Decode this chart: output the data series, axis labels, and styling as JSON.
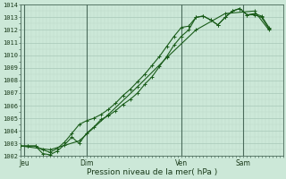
{
  "xlabel": "Pression niveau de la mer( hPa )",
  "ylim": [
    1002,
    1014
  ],
  "xlim": [
    0,
    36
  ],
  "bg_color": "#cce8d8",
  "grid_color_major": "#a8c8b8",
  "grid_color_minor": "#bcd8c8",
  "line_color": "#1a5c1a",
  "day_labels": [
    "Jeu",
    "Dim",
    "Ven",
    "Sam"
  ],
  "day_positions": [
    0.5,
    9,
    22,
    30.5
  ],
  "vline_positions": [
    0.5,
    9,
    22,
    30.5
  ],
  "yticks": [
    1002,
    1003,
    1004,
    1005,
    1006,
    1007,
    1008,
    1009,
    1010,
    1011,
    1012,
    1013,
    1014
  ],
  "series1_x": [
    0,
    1,
    2,
    3,
    4,
    5,
    6,
    7,
    8,
    9,
    10,
    11,
    12,
    13,
    14,
    15,
    16,
    17,
    18,
    19,
    20,
    21,
    22,
    23,
    24,
    25,
    26,
    27,
    28,
    29,
    30,
    31,
    32,
    33,
    34
  ],
  "series1_y": [
    1002.8,
    1002.8,
    1002.8,
    1002.5,
    1002.3,
    1002.6,
    1003.1,
    1003.8,
    1004.5,
    1004.8,
    1005.0,
    1005.3,
    1005.7,
    1006.2,
    1006.8,
    1007.3,
    1007.9,
    1008.5,
    1009.2,
    1009.9,
    1010.7,
    1011.5,
    1012.2,
    1012.3,
    1013.0,
    1013.1,
    1012.8,
    1012.4,
    1013.0,
    1013.5,
    1013.7,
    1013.2,
    1013.2,
    1013.0,
    1012.1
  ],
  "series2_x": [
    0,
    1,
    2,
    3,
    4,
    5,
    6,
    7,
    8,
    9,
    10,
    11,
    12,
    13,
    14,
    15,
    16,
    17,
    18,
    19,
    20,
    21,
    22,
    23,
    24,
    25,
    26,
    27,
    28,
    29,
    30,
    31,
    32,
    33,
    34
  ],
  "series2_y": [
    1002.8,
    1002.8,
    1002.8,
    1002.2,
    1002.1,
    1002.4,
    1002.9,
    1003.5,
    1003.0,
    1003.8,
    1004.3,
    1004.9,
    1005.2,
    1005.6,
    1006.1,
    1006.5,
    1007.0,
    1007.7,
    1008.3,
    1009.1,
    1009.9,
    1010.8,
    1011.5,
    1012.0,
    1013.0,
    1013.1,
    1012.8,
    1012.4,
    1013.0,
    1013.5,
    1013.7,
    1013.2,
    1013.3,
    1013.1,
    1012.2
  ],
  "series3_x": [
    0,
    4,
    8,
    12,
    16,
    20,
    24,
    28,
    32,
    34
  ],
  "series3_y": [
    1002.8,
    1002.5,
    1003.2,
    1005.3,
    1007.5,
    1009.8,
    1012.0,
    1013.3,
    1013.5,
    1012.0
  ]
}
